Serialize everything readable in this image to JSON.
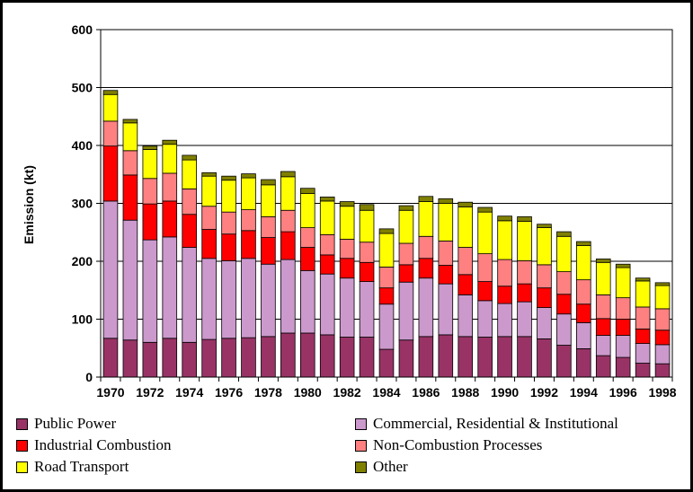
{
  "chart_data": {
    "type": "bar",
    "stacked": true,
    "title": "",
    "xlabel": "",
    "ylabel": "Emission (kt)",
    "ylim": [
      0,
      600
    ],
    "yticks": [
      0,
      100,
      200,
      300,
      400,
      500,
      600
    ],
    "grid": "horizontal",
    "legend_position": "bottom",
    "categories": [
      "1970",
      "1971",
      "1972",
      "1973",
      "1974",
      "1975",
      "1976",
      "1977",
      "1978",
      "1979",
      "1980",
      "1981",
      "1982",
      "1983",
      "1984",
      "1985",
      "1986",
      "1987",
      "1988",
      "1989",
      "1990",
      "1991",
      "1992",
      "1993",
      "1994",
      "1995",
      "1996",
      "1997",
      "1998"
    ],
    "xtick_labels": [
      "1970",
      "",
      "1972",
      "",
      "1974",
      "",
      "1976",
      "",
      "1978",
      "",
      "1980",
      "",
      "1982",
      "",
      "1984",
      "",
      "1986",
      "",
      "1988",
      "",
      "1990",
      "",
      "1992",
      "",
      "1994",
      "",
      "1996",
      "",
      "1998"
    ],
    "series": [
      {
        "name": "Public Power",
        "color": "#993366",
        "values": [
          67,
          64,
          60,
          67,
          60,
          65,
          67,
          68,
          70,
          76,
          76,
          73,
          69,
          69,
          48,
          64,
          70,
          73,
          70,
          69,
          70,
          70,
          66,
          55,
          49,
          37,
          34,
          24,
          23
        ]
      },
      {
        "name": "Commercial, Residential & Institutional",
        "color": "#CC99CC",
        "values": [
          237,
          207,
          177,
          175,
          164,
          140,
          134,
          137,
          125,
          127,
          108,
          105,
          102,
          96,
          78,
          100,
          101,
          88,
          72,
          63,
          57,
          60,
          54,
          54,
          45,
          35,
          38,
          34,
          33
        ]
      },
      {
        "name": "Industrial Combustion",
        "color": "#FF0000",
        "values": [
          95,
          78,
          62,
          62,
          57,
          50,
          46,
          48,
          46,
          48,
          40,
          33,
          34,
          33,
          28,
          30,
          34,
          32,
          35,
          33,
          30,
          31,
          34,
          34,
          32,
          29,
          28,
          25,
          25
        ]
      },
      {
        "name": "Non-Combustion Processes",
        "color": "#FF8080",
        "values": [
          43,
          42,
          44,
          48,
          44,
          40,
          38,
          36,
          36,
          37,
          34,
          35,
          33,
          35,
          36,
          37,
          38,
          42,
          47,
          48,
          46,
          40,
          40,
          39,
          42,
          41,
          37,
          38,
          37
        ]
      },
      {
        "name": "Road Transport",
        "color": "#FFFF00",
        "values": [
          46,
          48,
          50,
          50,
          50,
          52,
          55,
          55,
          55,
          58,
          59,
          58,
          57,
          55,
          58,
          57,
          60,
          65,
          70,
          72,
          67,
          68,
          64,
          61,
          59,
          56,
          52,
          45,
          40
        ]
      },
      {
        "name": "Other",
        "color": "#808000",
        "values": [
          7,
          6,
          6,
          7,
          8,
          6,
          7,
          7,
          9,
          9,
          9,
          7,
          8,
          10,
          8,
          8,
          9,
          8,
          8,
          8,
          8,
          8,
          6,
          8,
          7,
          6,
          6,
          5,
          5
        ]
      }
    ]
  }
}
